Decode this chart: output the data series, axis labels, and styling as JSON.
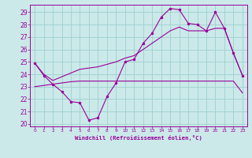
{
  "background_color": "#cbe9e9",
  "grid_color": "#9ecfcf",
  "line_color": "#990099",
  "xlabel": "Windchill (Refroidissement éolien,°C)",
  "ylim": [
    19.8,
    29.6
  ],
  "xlim": [
    -0.5,
    23.5
  ],
  "yticks": [
    20,
    21,
    22,
    23,
    24,
    25,
    26,
    27,
    28,
    29
  ],
  "xticks": [
    0,
    1,
    2,
    3,
    4,
    5,
    6,
    7,
    8,
    9,
    10,
    11,
    12,
    13,
    14,
    15,
    16,
    17,
    18,
    19,
    20,
    21,
    22,
    23
  ],
  "series1_x": [
    0,
    1,
    2,
    3,
    4,
    5,
    6,
    7,
    8,
    9,
    10,
    11,
    12,
    13,
    14,
    15,
    16,
    17,
    18,
    19,
    20,
    21,
    22,
    23
  ],
  "series1_y": [
    24.9,
    23.9,
    23.2,
    22.6,
    21.8,
    21.7,
    20.3,
    20.5,
    22.2,
    23.3,
    25.0,
    25.2,
    26.5,
    27.3,
    28.6,
    29.3,
    29.2,
    28.1,
    28.0,
    27.5,
    29.0,
    27.7,
    25.7,
    23.9
  ],
  "series2_x": [
    0,
    1,
    2,
    3,
    4,
    5,
    6,
    7,
    8,
    9,
    10,
    11,
    12,
    13,
    14,
    15,
    16,
    17,
    18,
    19,
    20,
    21,
    22,
    23
  ],
  "series2_y": [
    23.0,
    23.1,
    23.2,
    23.3,
    23.4,
    23.45,
    23.45,
    23.45,
    23.45,
    23.45,
    23.45,
    23.45,
    23.45,
    23.45,
    23.45,
    23.45,
    23.45,
    23.45,
    23.45,
    23.45,
    23.45,
    23.45,
    23.45,
    22.5
  ],
  "series3_x": [
    0,
    1,
    2,
    3,
    4,
    5,
    6,
    7,
    8,
    9,
    10,
    11,
    12,
    13,
    14,
    15,
    16,
    17,
    18,
    19,
    20,
    21,
    22,
    23
  ],
  "series3_y": [
    24.9,
    24.0,
    23.5,
    23.8,
    24.1,
    24.4,
    24.5,
    24.6,
    24.8,
    25.0,
    25.3,
    25.5,
    26.0,
    26.5,
    27.0,
    27.5,
    27.8,
    27.5,
    27.5,
    27.5,
    27.7,
    27.7,
    25.7,
    23.9
  ]
}
